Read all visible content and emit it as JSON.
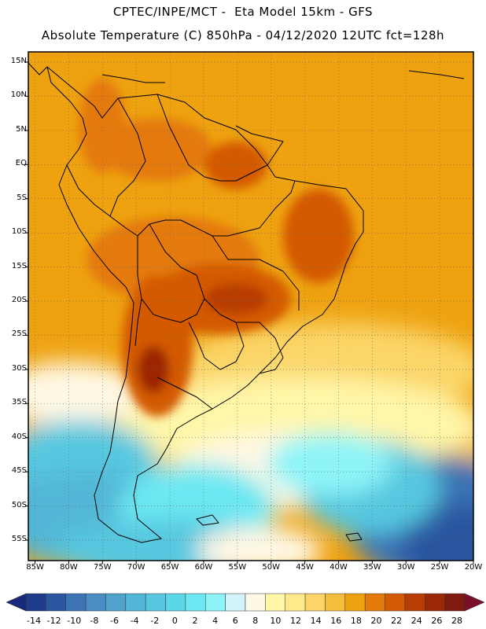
{
  "header": {
    "line1": "CPTEC/INPE/MCT -  Eta Model 15km - GFS",
    "line2": "Absolute Temperature (C) 850hPa - 04/12/2020 12UTC fct=128h"
  },
  "map": {
    "lat_labels": [
      "15N",
      "10N",
      "5N",
      "EQ",
      "5S",
      "10S",
      "15S",
      "20S",
      "25S",
      "30S",
      "35S",
      "40S",
      "45S",
      "50S",
      "55S"
    ],
    "lon_labels": [
      "85W",
      "80W",
      "75W",
      "70W",
      "65W",
      "60W",
      "55W",
      "50W",
      "45W",
      "40W",
      "35W",
      "30W",
      "25W",
      "20W"
    ],
    "lat_min": -58,
    "lat_max": 16.5,
    "lon_min": -86,
    "lon_max": -20
  },
  "colorbar": {
    "labels": [
      "-14",
      "-12",
      "-10",
      "-8",
      "-6",
      "-4",
      "-2",
      "0",
      "2",
      "4",
      "6",
      "8",
      "10",
      "12",
      "14",
      "16",
      "18",
      "20",
      "22",
      "24",
      "26",
      "28"
    ],
    "colors": [
      "#1f3c8c",
      "#2b56a0",
      "#3b73b4",
      "#4a8cc4",
      "#4fa3cd",
      "#52b6d6",
      "#57c8e0",
      "#5ad8ea",
      "#6ce8f2",
      "#8ef4f8",
      "#d4f4fb",
      "#fff8e4",
      "#fff6a8",
      "#ffe98a",
      "#fbd567",
      "#f5bd3c",
      "#eea210",
      "#e47a0a",
      "#d45a06",
      "#b83c06",
      "#9b2806",
      "#7e1a10"
    ],
    "over_color": "#7a0f2a",
    "under_color": "#1a2a7a"
  }
}
